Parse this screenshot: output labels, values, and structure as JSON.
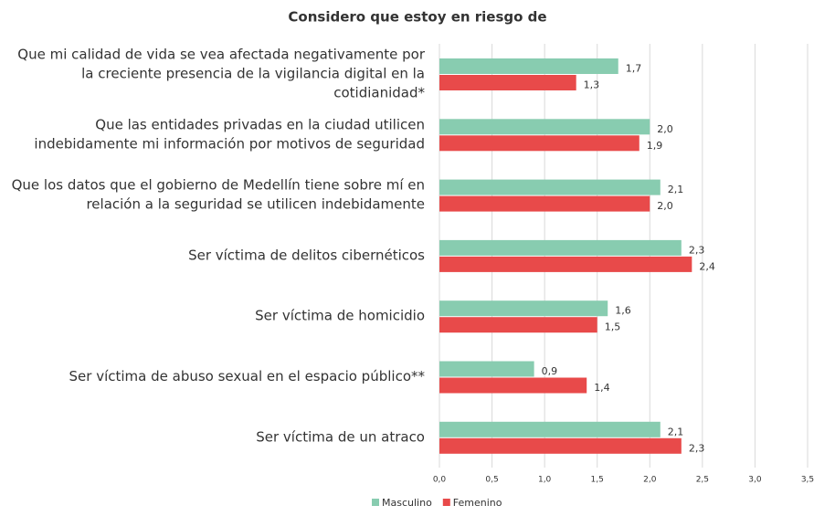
{
  "chart_data": {
    "type": "barh",
    "title": "Considero que estoy en riesgo de",
    "categories": [
      [
        "Que mi calidad de vida se vea afectada negativamente por",
        "la creciente presencia de la vigilancia digital en la",
        "cotidianidad*"
      ],
      [
        "Que las entidades privadas en la ciudad utilicen",
        "indebidamente mi información por motivos de seguridad"
      ],
      [
        "Que los datos que el gobierno de Medellín tiene sobre mí en",
        "relación a la seguridad se utilicen indebidamente"
      ],
      [
        "Ser víctima de delitos cibernéticos"
      ],
      [
        "Ser víctima de homicidio"
      ],
      [
        "Ser víctima de abuso sexual en el espacio público**"
      ],
      [
        "Ser víctima de un atraco"
      ]
    ],
    "series": [
      {
        "name": "Masculino",
        "color": "#88ccb0",
        "values": [
          1.7,
          2.0,
          2.1,
          2.3,
          1.6,
          0.9,
          2.1
        ],
        "value_labels": [
          "1,7",
          "2,0",
          "2,1",
          "2,3",
          "1,6",
          "0,9",
          "2,1"
        ]
      },
      {
        "name": "Femenino",
        "color": "#e84a4a",
        "values": [
          1.3,
          1.9,
          2.0,
          2.4,
          1.5,
          1.4,
          2.3
        ],
        "value_labels": [
          "1,3",
          "1,9",
          "2,0",
          "2,4",
          "1,5",
          "1,4",
          "2,3"
        ]
      }
    ],
    "xlim": [
      0,
      3.5
    ],
    "xticks": [
      {
        "value": 0,
        "label": "0,0"
      },
      {
        "value": 0.5,
        "label": "0,5"
      },
      {
        "value": 1,
        "label": "1,0"
      },
      {
        "value": 1.5,
        "label": "1,5"
      },
      {
        "value": 2,
        "label": "2,0"
      },
      {
        "value": 2.5,
        "label": "2,5"
      },
      {
        "value": 3,
        "label": "3,0"
      },
      {
        "value": 3.5,
        "label": "3,5"
      }
    ],
    "grid": true
  }
}
